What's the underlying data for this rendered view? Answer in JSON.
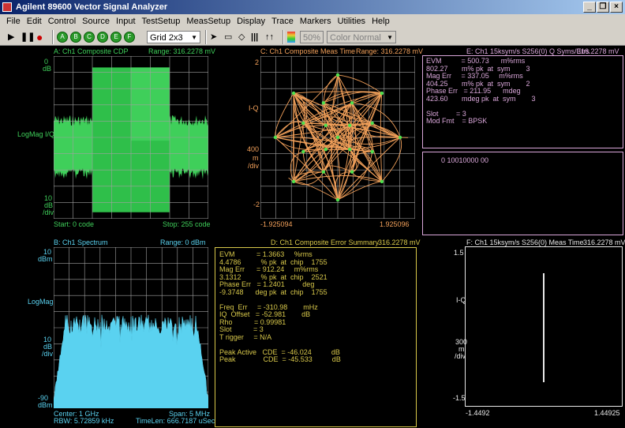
{
  "window": {
    "title": "Agilent 89600 Vector Signal Analyzer",
    "min": "_",
    "max": "×",
    "restore": "❐"
  },
  "menu": [
    "File",
    "Edit",
    "Control",
    "Source",
    "Input",
    "TestSetup",
    "MeasSetup",
    "Display",
    "Trace",
    "Markers",
    "Utilities",
    "Help"
  ],
  "toolbar": {
    "trace_buttons": [
      "A",
      "B",
      "C",
      "D",
      "E",
      "F"
    ],
    "grid": "Grid 2x3",
    "percent": "50%",
    "color": "Color Normal"
  },
  "panes": {
    "a": {
      "title": "A: Ch1 Composite CDP",
      "range": "Range: 316.2278 mV",
      "top_value": "0",
      "top_unit": "dB",
      "ylabel": "LogMag I/Q",
      "bot_value": "10",
      "bot_unit1": "dB",
      "bot_unit2": "/div",
      "start": "Start: 0 code",
      "stop": "Stop: 255 code"
    },
    "b": {
      "title": "B: Ch1 Spectrum",
      "range": "Range: 0 dBm",
      "top_value": "10",
      "top_unit": "dBm",
      "ylabel": "LogMag",
      "mid_value": "10",
      "mid_unit1": "dB",
      "mid_unit2": "/div",
      "bot_value": "-90",
      "bot_unit": "dBm",
      "center": "Center: 1 GHz",
      "span": "Span: 5 MHz",
      "rbw": "RBW: 5.72859 kHz",
      "timelen": "TimeLen: 666.7187 uSec"
    },
    "c": {
      "title": "C: Ch1 Composite Meas Time",
      "range": "Range: 316.2278 mV",
      "top_value": "2",
      "ylabel": "I-Q",
      "scale": "400",
      "scale_u1": "m",
      "scale_u2": "/div",
      "bot_value": "-2",
      "xmin": "-1.925094",
      "xmax": "1.925096"
    },
    "d": {
      "title": "D: Ch1 Composite Error Summary",
      "value": "316.2278 mV",
      "lines": [
        "EVM           = 1.3663     %rms",
        "4.4786          % pk  at  chip    1755",
        "Mag Err      = 912.24     m%rms",
        "3.1312          % pk  at  chip    2521",
        "Phase Err   = 1.2401         deg",
        "-9.3748      deg pk  at  chip    1755",
        "",
        "Freq  Err     = -310.98        mHz",
        "IQ  Offset   = -52.981        dB",
        "Rho           = 0.99981",
        "Slot           = 3",
        "T rigger     = N/A",
        "",
        "Peak Active   CDE  = -46.024          dB",
        "Peak              CDE  = -45.533          dB"
      ]
    },
    "e": {
      "title": "E: Ch1 15ksym/s S256(0) Q Syms/Errs",
      "value": "316.2278 mV",
      "lines": [
        "EVM          = 500.73      m%rms",
        "802.27       m% pk  at  sym        3",
        "Mag Err     = 337.05     m%rms",
        "404.25       m% pk  at  sym        2",
        "Phase Err   = 211.95      mdeg",
        "423.60       mdeg pk  at  sym        3",
        "",
        "Slot         = 3",
        "Mod Fmt    = BPSK"
      ],
      "bits": "0  10010000  00"
    },
    "f": {
      "title": "F: Ch1 15ksym/s S256(0) Meas Time",
      "value": "316.2278 mV",
      "top_value": "1.5",
      "ylabel": "I-Q",
      "scale": "300",
      "scale_u1": "m",
      "scale_u2": "/div",
      "bot_value": "-1.5",
      "xmin": "-1.4492",
      "xmax": "1.44925"
    }
  },
  "colors": {
    "green": "#3fcf5a",
    "cyan": "#5ad2f0",
    "orange": "#f2a05a",
    "pink": "#d9a6d9",
    "yellow": "#d8c84a",
    "grid": "#a0a0a0"
  }
}
